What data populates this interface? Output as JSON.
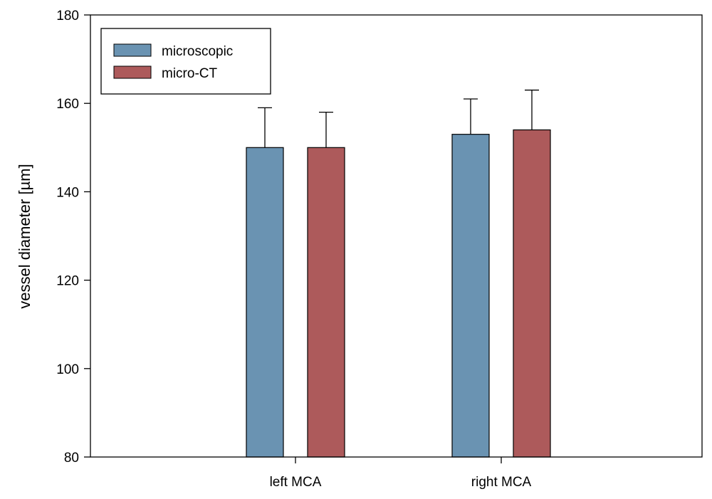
{
  "chart_data": {
    "type": "bar",
    "categories": [
      "left MCA",
      "right MCA"
    ],
    "series": [
      {
        "name": "microscopic",
        "values": [
          150,
          153
        ],
        "errors": [
          9,
          8
        ],
        "color": "#6a93b2"
      },
      {
        "name": "micro-CT",
        "values": [
          150,
          154
        ],
        "errors": [
          8,
          9
        ],
        "color": "#ad5a5b"
      }
    ],
    "ylabel": "vessel diameter [µm]",
    "xlabel": "",
    "ylim": [
      80,
      180
    ],
    "yticks": [
      80,
      100,
      120,
      140,
      160,
      180
    ],
    "legend_position": "top-left",
    "grid": false
  }
}
